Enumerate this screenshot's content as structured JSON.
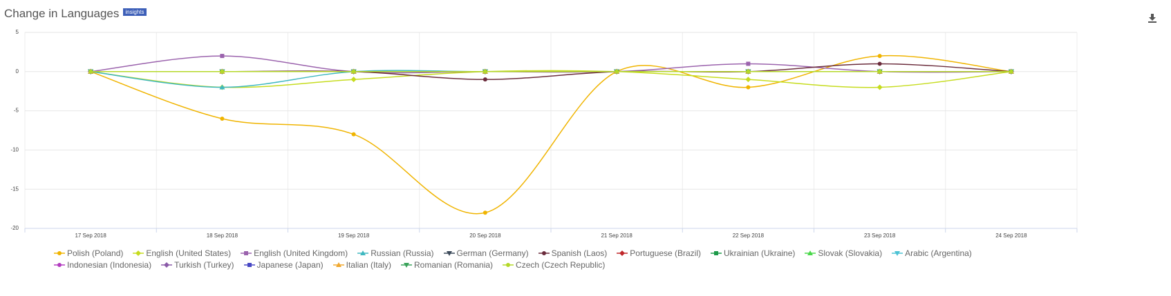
{
  "header": {
    "title": "Change in Languages",
    "badge": "insights"
  },
  "chart_data": {
    "type": "line",
    "smooth": true,
    "grid": true,
    "categories": [
      "17 Sep 2018",
      "18 Sep 2018",
      "19 Sep 2018",
      "20 Sep 2018",
      "21 Sep 2018",
      "22 Sep 2018",
      "23 Sep 2018",
      "24 Sep 2018"
    ],
    "ylim": [
      -20,
      5
    ],
    "yticks": [
      -20,
      -15,
      -10,
      -5,
      0,
      5
    ],
    "series": [
      {
        "name": "Polish (Poland)",
        "color": "#f0b400",
        "symbol": "circle",
        "values": [
          0,
          -6,
          -8,
          -18,
          0,
          -2,
          2,
          0
        ]
      },
      {
        "name": "English (United States)",
        "color": "#c6dc1e",
        "symbol": "diamond",
        "values": [
          0,
          -2,
          -1,
          0,
          0,
          -1,
          -2,
          0
        ]
      },
      {
        "name": "English (United Kingdom)",
        "color": "#9b63ad",
        "symbol": "square",
        "values": [
          0,
          2,
          0,
          0,
          0,
          1,
          0,
          0
        ]
      },
      {
        "name": "Russian (Russia)",
        "color": "#3fb8c0",
        "symbol": "triangle",
        "values": [
          0,
          -2,
          0,
          0,
          0,
          0,
          0,
          0
        ]
      },
      {
        "name": "German (Germany)",
        "color": "#3c4a5a",
        "symbol": "triangle-down",
        "values": [
          0,
          0,
          0,
          0,
          0,
          0,
          0,
          0
        ]
      },
      {
        "name": "Spanish (Laos)",
        "color": "#6b2c3c",
        "symbol": "circle",
        "values": [
          0,
          0,
          0,
          -1,
          0,
          0,
          1,
          0
        ]
      },
      {
        "name": "Portuguese (Brazil)",
        "color": "#c0282b",
        "symbol": "diamond",
        "values": [
          0,
          0,
          0,
          0,
          0,
          0,
          0,
          0
        ]
      },
      {
        "name": "Ukrainian (Ukraine)",
        "color": "#1e9a4a",
        "symbol": "square",
        "values": [
          0,
          0,
          0,
          0,
          0,
          0,
          0,
          0
        ]
      },
      {
        "name": "Slovak (Slovakia)",
        "color": "#4ad84a",
        "symbol": "triangle",
        "values": [
          0,
          0,
          0,
          0,
          0,
          0,
          0,
          0
        ]
      },
      {
        "name": "Arabic (Argentina)",
        "color": "#4cc2d4",
        "symbol": "triangle-down",
        "values": [
          0,
          0,
          0,
          0,
          0,
          0,
          0,
          0
        ]
      },
      {
        "name": "Indonesian (Indonesia)",
        "color": "#b23cc0",
        "symbol": "circle",
        "values": [
          0,
          0,
          0,
          0,
          0,
          0,
          0,
          0
        ]
      },
      {
        "name": "Turkish (Turkey)",
        "color": "#8a5aa8",
        "symbol": "diamond",
        "values": [
          0,
          0,
          0,
          0,
          0,
          0,
          0,
          0
        ]
      },
      {
        "name": "Japanese (Japan)",
        "color": "#4848c4",
        "symbol": "square",
        "values": [
          0,
          0,
          0,
          0,
          0,
          0,
          0,
          0
        ]
      },
      {
        "name": "Italian (Italy)",
        "color": "#f0a830",
        "symbol": "triangle",
        "values": [
          0,
          0,
          0,
          0,
          0,
          0,
          0,
          0
        ]
      },
      {
        "name": "Romanian (Romania)",
        "color": "#3aa35a",
        "symbol": "triangle-down",
        "values": [
          0,
          0,
          0,
          0,
          0,
          0,
          0,
          0
        ]
      },
      {
        "name": "Czech (Czech Republic)",
        "color": "#b4d828",
        "symbol": "circle",
        "values": [
          0,
          0,
          0,
          0,
          0,
          0,
          0,
          0
        ]
      }
    ]
  }
}
